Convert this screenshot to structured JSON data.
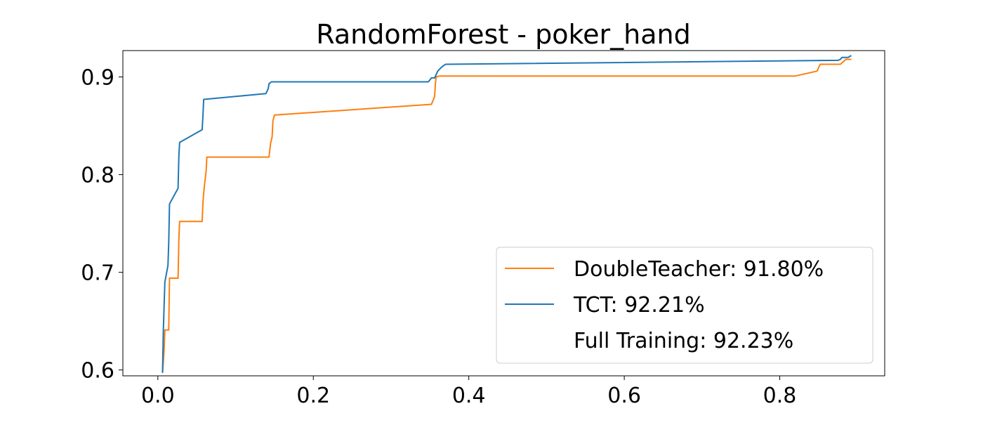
{
  "chart_data": {
    "type": "line",
    "title": "RandomForest - poker_hand",
    "xlabel": "",
    "ylabel": "",
    "xlim": [
      -0.045,
      0.935
    ],
    "ylim": [
      0.594,
      0.927
    ],
    "xticks": [
      {
        "value": 0.0,
        "label": "0.0"
      },
      {
        "value": 0.2,
        "label": "0.2"
      },
      {
        "value": 0.4,
        "label": "0.4"
      },
      {
        "value": 0.6,
        "label": "0.6"
      },
      {
        "value": 0.8,
        "label": "0.8"
      }
    ],
    "yticks": [
      {
        "value": 0.6,
        "label": "0.6"
      },
      {
        "value": 0.7,
        "label": "0.7"
      },
      {
        "value": 0.8,
        "label": "0.8"
      },
      {
        "value": 0.9,
        "label": "0.9"
      }
    ],
    "grid": false,
    "legend_position": "lower-right",
    "series": [
      {
        "name": "DoubleTeacher: 91.80%",
        "color": "#ff7f0e",
        "x": [
          0.006,
          0.008,
          0.009,
          0.01,
          0.014,
          0.015,
          0.016,
          0.026,
          0.027,
          0.028,
          0.057,
          0.058,
          0.059,
          0.06,
          0.062,
          0.063,
          0.064,
          0.143,
          0.145,
          0.147,
          0.148,
          0.15,
          0.352,
          0.356,
          0.357,
          0.358,
          0.362,
          0.82,
          0.848,
          0.852,
          0.855,
          0.878,
          0.885,
          0.892
        ],
        "y": [
          0.597,
          0.62,
          0.641,
          0.641,
          0.641,
          0.694,
          0.694,
          0.694,
          0.733,
          0.752,
          0.752,
          0.771,
          0.781,
          0.79,
          0.803,
          0.818,
          0.818,
          0.818,
          0.832,
          0.839,
          0.855,
          0.861,
          0.872,
          0.88,
          0.893,
          0.9,
          0.901,
          0.901,
          0.906,
          0.913,
          0.913,
          0.913,
          0.918,
          0.918
        ]
      },
      {
        "name": "TCT: 92.21%",
        "color": "#1f77b4",
        "x": [
          0.006,
          0.007,
          0.008,
          0.009,
          0.013,
          0.014,
          0.015,
          0.026,
          0.027,
          0.028,
          0.057,
          0.058,
          0.059,
          0.139,
          0.142,
          0.143,
          0.146,
          0.348,
          0.352,
          0.356,
          0.36,
          0.365,
          0.37,
          0.875,
          0.878,
          0.88,
          0.888,
          0.892
        ],
        "y": [
          0.597,
          0.64,
          0.665,
          0.69,
          0.707,
          0.73,
          0.77,
          0.786,
          0.818,
          0.833,
          0.846,
          0.86,
          0.877,
          0.883,
          0.888,
          0.893,
          0.895,
          0.895,
          0.899,
          0.899,
          0.906,
          0.91,
          0.913,
          0.917,
          0.918,
          0.92,
          0.92,
          0.922
        ]
      },
      {
        "name": "Full Training: 92.23%",
        "color": "#2ca02c",
        "x": [],
        "y": []
      }
    ]
  }
}
